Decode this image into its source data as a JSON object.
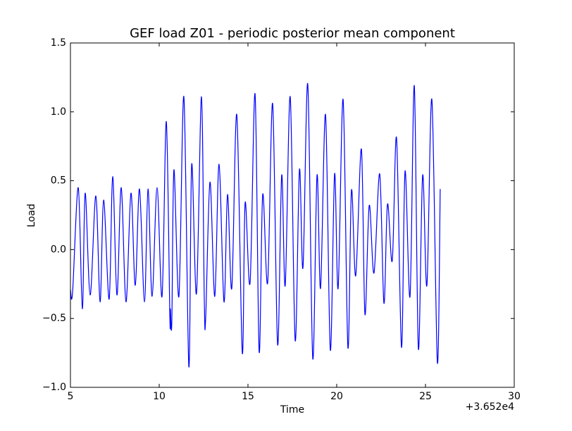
{
  "chart_data": {
    "type": "line",
    "title": "GEF load Z01 - periodic posterior mean component",
    "x_label": "Time",
    "y_label": "Load",
    "x_offset_label": "+3.652e4",
    "xlim": [
      5,
      30
    ],
    "xticks": [
      5,
      10,
      15,
      20,
      25,
      30
    ],
    "ylim": [
      -1.0,
      1.5
    ],
    "yticks": [
      {
        "value": -1.0,
        "label": "−1.0"
      },
      {
        "value": -0.5,
        "label": "−0.5"
      },
      {
        "value": 0.0,
        "label": "0.0"
      },
      {
        "value": 0.5,
        "label": "0.5"
      },
      {
        "value": 1.0,
        "label": "1.0"
      },
      {
        "value": 1.5,
        "label": "1.5"
      }
    ],
    "grid": false,
    "series": [
      {
        "color": "#0000ff",
        "x": [
          5.0,
          5.12,
          5.44,
          5.67,
          5.83,
          6.11,
          6.43,
          6.67,
          6.87,
          7.18,
          7.38,
          7.62,
          7.86,
          8.13,
          8.41,
          8.65,
          8.89,
          9.17,
          9.37,
          9.6,
          9.88,
          10.16,
          10.4,
          10.6,
          10.63,
          10.71,
          10.83,
          11.11,
          11.39,
          11.67,
          11.83,
          12.1,
          12.38,
          12.54,
          12.62,
          12.86,
          13.13,
          13.37,
          13.65,
          13.85,
          14.09,
          14.37,
          14.68,
          14.84,
          15.12,
          15.4,
          15.63,
          15.83,
          16.11,
          16.39,
          16.67,
          16.9,
          17.1,
          17.38,
          17.66,
          17.9,
          18.1,
          18.37,
          18.65,
          18.89,
          19.09,
          19.37,
          19.64,
          19.88,
          20.08,
          20.36,
          20.63,
          20.83,
          21.07,
          21.39,
          21.59,
          21.83,
          22.1,
          22.42,
          22.66,
          22.86,
          23.13,
          23.37,
          23.65,
          23.85,
          24.13,
          24.37,
          24.6,
          24.84,
          25.08,
          25.36,
          25.67,
          25.83
        ],
        "values": [
          -0.29,
          -0.31,
          0.45,
          -0.43,
          0.41,
          -0.33,
          0.39,
          -0.38,
          0.36,
          -0.36,
          0.53,
          -0.33,
          0.45,
          -0.38,
          0.41,
          -0.26,
          0.44,
          -0.38,
          0.44,
          -0.34,
          0.45,
          -0.34,
          0.93,
          -0.49,
          -0.43,
          -0.53,
          0.58,
          -0.34,
          1.11,
          -0.85,
          0.62,
          -0.32,
          1.11,
          -0.36,
          -0.49,
          0.49,
          -0.34,
          0.62,
          -0.38,
          0.4,
          -0.28,
          0.98,
          -0.75,
          0.34,
          -0.24,
          1.13,
          -0.74,
          0.4,
          -0.24,
          1.06,
          -0.69,
          0.54,
          -0.26,
          1.11,
          -0.66,
          0.58,
          -0.13,
          1.2,
          -0.79,
          0.54,
          -0.28,
          0.98,
          -0.73,
          0.55,
          -0.28,
          1.09,
          -0.71,
          0.43,
          -0.19,
          0.73,
          -0.47,
          0.32,
          -0.17,
          0.55,
          -0.39,
          0.33,
          -0.08,
          0.81,
          -0.71,
          0.57,
          -0.34,
          1.19,
          -0.72,
          0.54,
          -0.26,
          1.09,
          -0.82,
          0.44
        ]
      }
    ]
  }
}
